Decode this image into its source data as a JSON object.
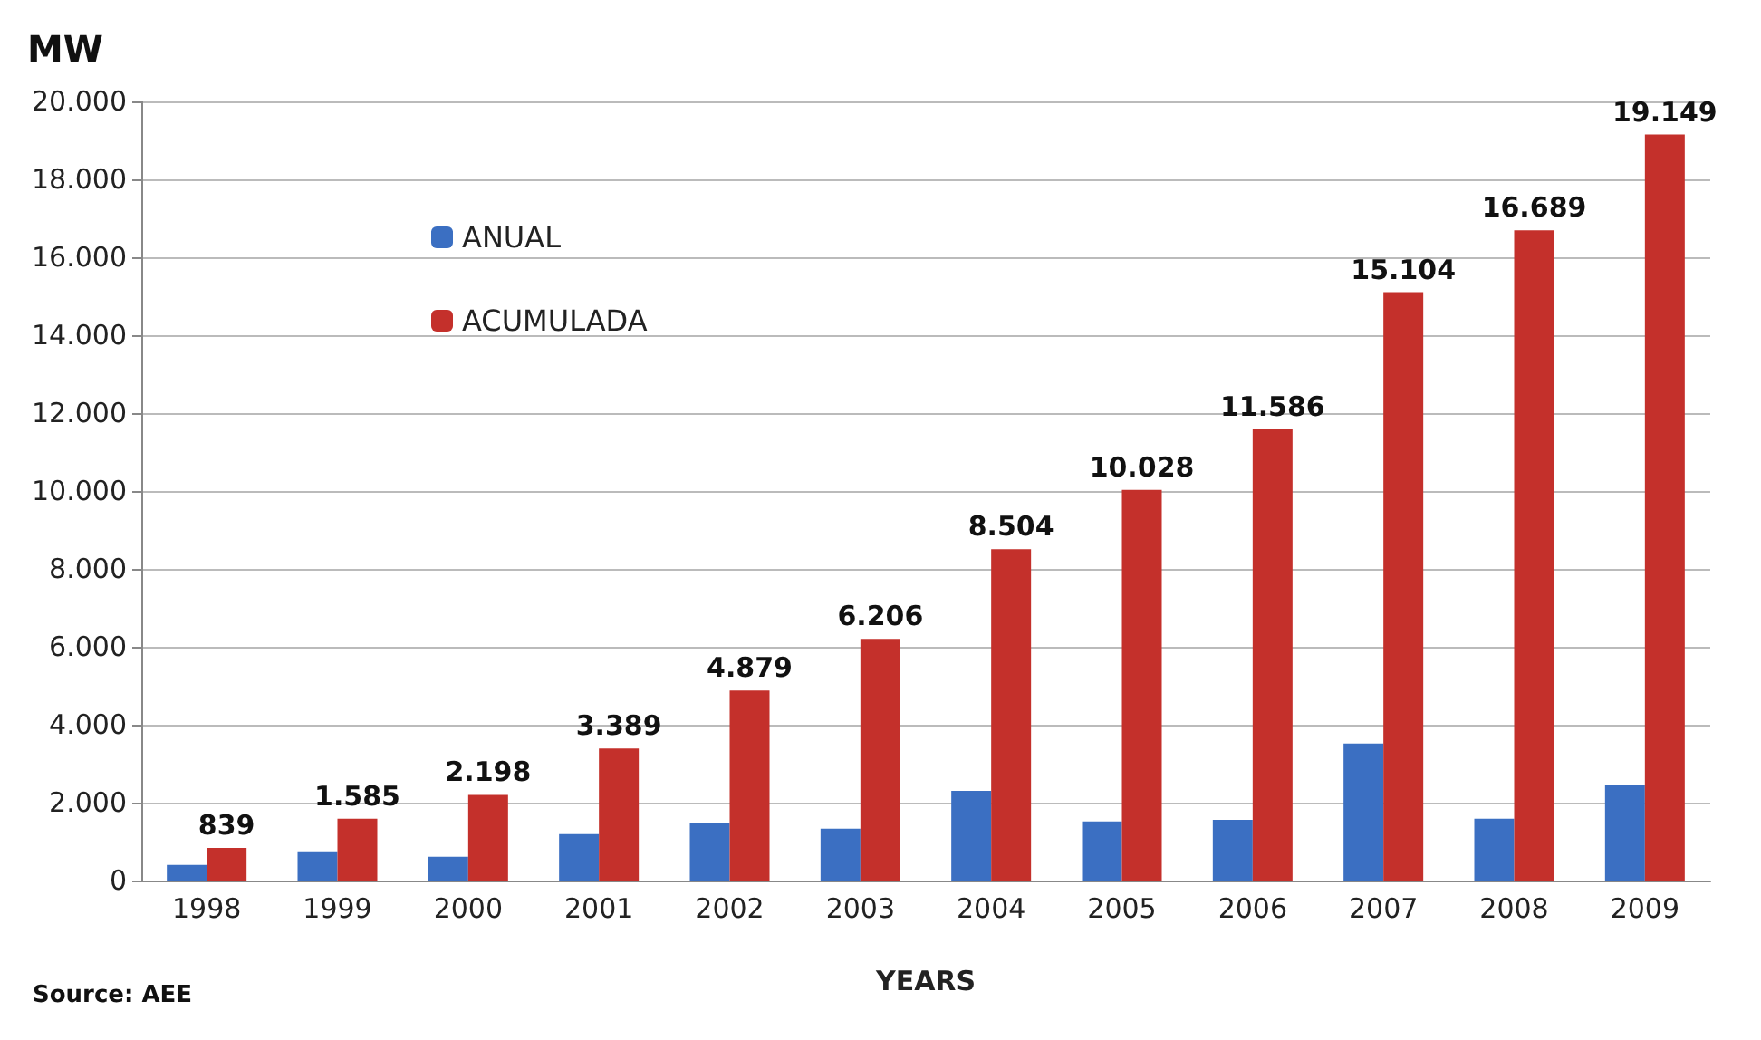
{
  "chart_data": {
    "type": "bar",
    "title": "MW",
    "xlabel": "YEARS",
    "annotations": [
      "Source: AEE"
    ],
    "categories": [
      "1998",
      "1999",
      "2000",
      "2001",
      "2002",
      "2003",
      "2004",
      "2005",
      "2006",
      "2007",
      "2008",
      "2009"
    ],
    "series": [
      {
        "name": "ANUAL",
        "color": "#3b6fc2",
        "values": [
          400,
          750,
          610,
          1190,
          1490,
          1330,
          2300,
          1520,
          1560,
          3520,
          1590,
          2460
        ]
      },
      {
        "name": "ACUMULADA",
        "color": "#c4302b",
        "values": [
          839,
          1585,
          2198,
          3389,
          4879,
          6206,
          8504,
          10028,
          11586,
          15104,
          16689,
          19149
        ],
        "value_labels": [
          "839",
          "1.585",
          "2.198",
          "3.389",
          "4.879",
          "6.206",
          "8.504",
          "10.028",
          "11.586",
          "15.104",
          "16.689",
          "19.149"
        ]
      }
    ],
    "ylim": [
      0,
      20000
    ],
    "yticks": [
      {
        "value": 0,
        "label": "0"
      },
      {
        "value": 2000,
        "label": "2.000"
      },
      {
        "value": 4000,
        "label": "4.000"
      },
      {
        "value": 6000,
        "label": "6.000"
      },
      {
        "value": 8000,
        "label": "8.000"
      },
      {
        "value": 10000,
        "label": "10.000"
      },
      {
        "value": 12000,
        "label": "12.000"
      },
      {
        "value": 14000,
        "label": "14.000"
      },
      {
        "value": 16000,
        "label": "16.000"
      },
      {
        "value": 18000,
        "label": "18.000"
      },
      {
        "value": 20000,
        "label": "20.000"
      }
    ],
    "grid": "y",
    "legend": "top left"
  }
}
